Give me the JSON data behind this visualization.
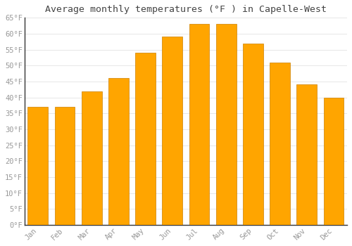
{
  "title": "Average monthly temperatures (°F ) in Capelle-West",
  "months": [
    "Jan",
    "Feb",
    "Mar",
    "Apr",
    "May",
    "Jun",
    "Jul",
    "Aug",
    "Sep",
    "Oct",
    "Nov",
    "Dec"
  ],
  "values": [
    37,
    37,
    42,
    46,
    54,
    59,
    63,
    63,
    57,
    51,
    44,
    40
  ],
  "bar_color": "#FFA500",
  "bar_color_light": "#FFD080",
  "bar_edge_color": "#CC8000",
  "background_color": "#FFFFFF",
  "plot_bg_color": "#FFFFFF",
  "grid_color": "#DDDDDD",
  "ylim": [
    0,
    65
  ],
  "yticks": [
    0,
    5,
    10,
    15,
    20,
    25,
    30,
    35,
    40,
    45,
    50,
    55,
    60,
    65
  ],
  "title_fontsize": 9.5,
  "tick_fontsize": 7.5,
  "tick_color": "#999999",
  "title_color": "#444444",
  "spine_color": "#333333",
  "bar_width": 0.75
}
